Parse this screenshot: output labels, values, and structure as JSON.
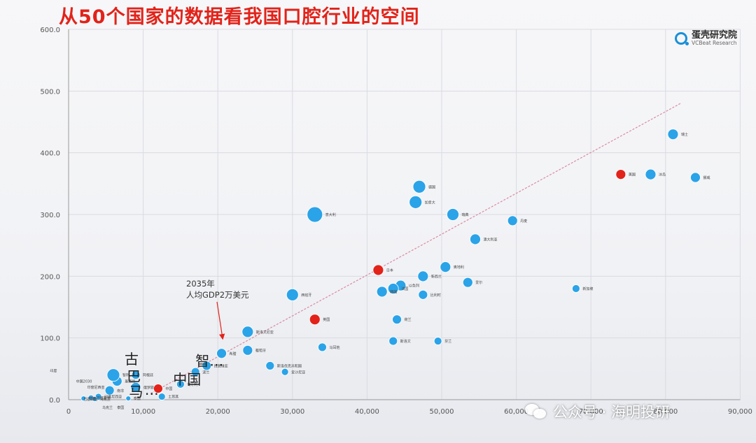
{
  "slide": {
    "title": "从50个国家的数据看我国口腔行业的空间",
    "brand_name": "蛋壳研究院",
    "brand_sub": "VCBeat Research"
  },
  "watermark": {
    "text": "公众号 · 海明投研"
  },
  "colors": {
    "highlight": "#e2231a",
    "bubble": "#2aa3e8",
    "trend": "#d98aa0"
  },
  "chart_data": {
    "type": "scatter",
    "title": "",
    "xlabel": "",
    "ylabel": "",
    "xlim": [
      0,
      90000
    ],
    "ylim": [
      0,
      600
    ],
    "x_ticks": [
      {
        "value": 0,
        "label": "0"
      },
      {
        "value": 10000,
        "label": "10,000"
      },
      {
        "value": 20000,
        "label": "20,000"
      },
      {
        "value": 30000,
        "label": "30,000"
      },
      {
        "value": 40000,
        "label": "40,000"
      },
      {
        "value": 50000,
        "label": "50,000"
      },
      {
        "value": 60000,
        "label": "60,000"
      },
      {
        "value": 70000,
        "label": "70,000"
      },
      {
        "value": 80000,
        "label": "80,000"
      },
      {
        "value": 90000,
        "label": "90,000"
      }
    ],
    "y_ticks": [
      {
        "value": 0,
        "label": "0.0"
      },
      {
        "value": 100,
        "label": "100.0"
      },
      {
        "value": 200,
        "label": "200.0"
      },
      {
        "value": 300,
        "label": "300.0"
      },
      {
        "value": 400,
        "label": "400.0"
      },
      {
        "value": 500,
        "label": "500.0"
      },
      {
        "value": 600,
        "label": "600.0"
      }
    ],
    "grid": true,
    "trendline": {
      "x": [
        11000,
        82000
      ],
      "y": [
        10,
        480
      ]
    },
    "annotation": {
      "text_line1": "2035年",
      "text_line2": "人均GDP2万美元",
      "x": 20000,
      "y": 100
    },
    "points": [
      {
        "x": 81000,
        "y": 430,
        "size": 15,
        "label": "瑞士",
        "highlight": false
      },
      {
        "x": 74000,
        "y": 365,
        "size": 14,
        "label": "美国",
        "highlight": true
      },
      {
        "x": 78000,
        "y": 365,
        "size": 15,
        "label": "冰岛",
        "highlight": false
      },
      {
        "x": 84000,
        "y": 360,
        "size": 14,
        "label": "挪威",
        "highlight": false
      },
      {
        "x": 47000,
        "y": 345,
        "size": 18,
        "label": "德国",
        "highlight": false
      },
      {
        "x": 46500,
        "y": 320,
        "size": 18,
        "label": "加拿大",
        "highlight": false
      },
      {
        "x": 51500,
        "y": 300,
        "size": 17,
        "label": "瑞典",
        "highlight": false
      },
      {
        "x": 33000,
        "y": 300,
        "size": 22,
        "label": "意大利",
        "highlight": false
      },
      {
        "x": 59500,
        "y": 290,
        "size": 14,
        "label": "丹麦",
        "highlight": false
      },
      {
        "x": 54500,
        "y": 260,
        "size": 15,
        "label": "澳大利亚",
        "highlight": false
      },
      {
        "x": 41500,
        "y": 210,
        "size": 15,
        "label": "日本",
        "highlight": true
      },
      {
        "x": 50500,
        "y": 215,
        "size": 15,
        "label": "奥地利",
        "highlight": false
      },
      {
        "x": 47500,
        "y": 200,
        "size": 15,
        "label": "新西兰",
        "highlight": false
      },
      {
        "x": 53500,
        "y": 190,
        "size": 14,
        "label": "爱尔",
        "highlight": false
      },
      {
        "x": 44500,
        "y": 185,
        "size": 15,
        "label": "以色列",
        "highlight": false
      },
      {
        "x": 43500,
        "y": 180,
        "size": 15,
        "label": "法国",
        "highlight": false
      },
      {
        "x": 42000,
        "y": 175,
        "size": 15,
        "label": "韩国",
        "highlight": false
      },
      {
        "x": 47500,
        "y": 170,
        "size": 13,
        "label": "比利时",
        "highlight": false
      },
      {
        "x": 68000,
        "y": 180,
        "size": 11,
        "label": "新加坡",
        "highlight": false
      },
      {
        "x": 30000,
        "y": 170,
        "size": 17,
        "label": "西班牙",
        "highlight": false
      },
      {
        "x": 33000,
        "y": 130,
        "size": 15,
        "label": "英国",
        "highlight": true
      },
      {
        "x": 44000,
        "y": 130,
        "size": 13,
        "label": "荷兰",
        "highlight": false
      },
      {
        "x": 24000,
        "y": 110,
        "size": 16,
        "label": "斯洛文尼亚",
        "highlight": false
      },
      {
        "x": 43500,
        "y": 95,
        "size": 12,
        "label": "斯洛文",
        "highlight": false
      },
      {
        "x": 49500,
        "y": 95,
        "size": 11,
        "label": "芬兰",
        "highlight": false
      },
      {
        "x": 34000,
        "y": 85,
        "size": 12,
        "label": "马耳他",
        "highlight": false
      },
      {
        "x": 24000,
        "y": 80,
        "size": 14,
        "label": "葡萄牙",
        "highlight": false
      },
      {
        "x": 20500,
        "y": 75,
        "size": 14,
        "label": "希腊",
        "highlight": false
      },
      {
        "x": 27000,
        "y": 55,
        "size": 12,
        "label": "斯洛伐克共和国",
        "highlight": false
      },
      {
        "x": 29000,
        "y": 45,
        "size": 10,
        "label": "爱沙尼亚",
        "highlight": false
      },
      {
        "x": 18500,
        "y": 55,
        "size": 13,
        "label": "拉脱维亚",
        "highlight": false
      },
      {
        "x": 17000,
        "y": 45,
        "size": 12,
        "label": "波兰",
        "highlight": false
      },
      {
        "x": 15000,
        "y": 25,
        "size": 11,
        "label": "匈牙利",
        "highlight": false
      },
      {
        "x": 12000,
        "y": 18,
        "size": 13,
        "label": "中国",
        "highlight": true
      },
      {
        "x": 12500,
        "y": 5,
        "size": 10,
        "label": "土耳其",
        "highlight": false
      },
      {
        "x": 9000,
        "y": 20,
        "size": 14,
        "label": "俄罗斯",
        "highlight": false
      },
      {
        "x": 9000,
        "y": 40,
        "size": 12,
        "label": "阿根廷",
        "highlight": false
      },
      {
        "x": 6500,
        "y": 30,
        "size": 14,
        "label": "墨西哥",
        "highlight": false
      },
      {
        "x": 6000,
        "y": 40,
        "size": 18,
        "label": "智利",
        "highlight": false
      },
      {
        "x": 5500,
        "y": 15,
        "size": 13,
        "label": "南非",
        "highlight": false
      },
      {
        "x": 4000,
        "y": 5,
        "size": 9,
        "label": "印度尼西亚",
        "highlight": false
      },
      {
        "x": 3000,
        "y": 3,
        "size": 8,
        "label": "巴基斯坦",
        "highlight": false
      },
      {
        "x": 3500,
        "y": 1,
        "size": 7,
        "label": "乌克兰",
        "highlight": false
      },
      {
        "x": 2000,
        "y": 2,
        "size": 7,
        "label": "印度",
        "highlight": false
      },
      {
        "x": 8000,
        "y": 2,
        "size": 7,
        "label": "泰国",
        "highlight": false
      }
    ],
    "overlay_labels": [
      {
        "text": "古",
        "x": 7500,
        "y": 58
      },
      {
        "text": "巴",
        "x": 7800,
        "y": 30
      },
      {
        "text": "马",
        "x": 8100,
        "y": 5
      },
      {
        "text": "…",
        "x": 10200,
        "y": 8
      },
      {
        "text": "中国",
        "x": 14000,
        "y": 25
      },
      {
        "text": "智…",
        "x": 17000,
        "y": 55
      }
    ],
    "callout_labels": [
      {
        "text": "印度",
        "x": -2500,
        "y": 45
      },
      {
        "text": "中国2030",
        "x": 1000,
        "y": 28
      },
      {
        "text": "印度尼西亚",
        "x": 2500,
        "y": 18
      },
      {
        "text": "巴基斯坦",
        "x": 2000,
        "y": -1
      },
      {
        "text": "乌克兰",
        "x": 4500,
        "y": -15
      },
      {
        "text": "泰国",
        "x": 6500,
        "y": -15
      }
    ]
  }
}
